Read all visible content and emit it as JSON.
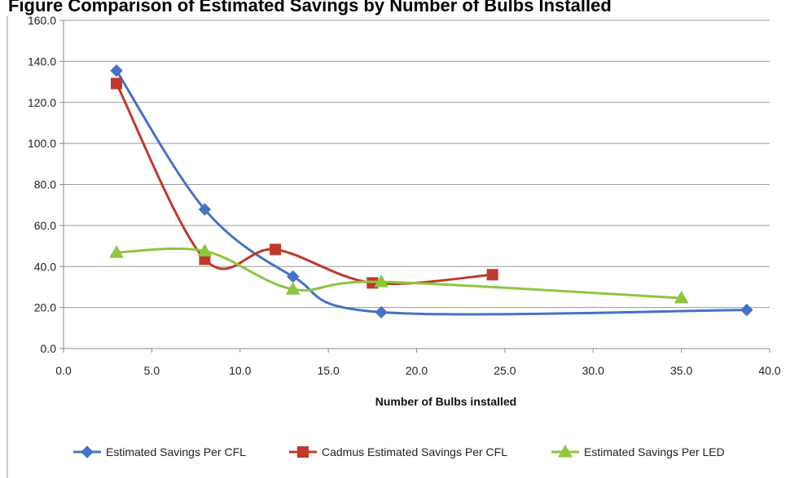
{
  "page": {
    "cut_title": "Figure  Comparison of Estimated Savings by Number of Bulbs Installed"
  },
  "chart_data": {
    "type": "line",
    "smooth": true,
    "title": "",
    "xlabel": "Number of Bulbs installed",
    "ylabel": "",
    "xlim": [
      0,
      40
    ],
    "ylim": [
      0,
      160
    ],
    "x_ticks": [
      "0.0",
      "5.0",
      "10.0",
      "15.0",
      "20.0",
      "25.0",
      "30.0",
      "35.0",
      "40.0"
    ],
    "y_ticks": [
      "0.0",
      "20.0",
      "40.0",
      "60.0",
      "80.0",
      "100.0",
      "120.0",
      "140.0",
      "160.0"
    ],
    "grid": "horizontal",
    "legend_position": "bottom",
    "series": [
      {
        "name": "Estimated Savings Per CFL",
        "color": "#4472C4",
        "marker": "diamond",
        "points": [
          [
            3.0,
            135.5
          ],
          [
            8.0,
            67.8
          ],
          [
            13.0,
            35.1
          ],
          [
            18.0,
            17.7
          ],
          [
            38.7,
            18.8
          ]
        ]
      },
      {
        "name": "Cadmus Estimated Savings Per CFL",
        "color": "#C0392B",
        "marker": "square",
        "points": [
          [
            3.0,
            129.2
          ],
          [
            8.0,
            43.5
          ],
          [
            12.0,
            48.3
          ],
          [
            17.5,
            32.0
          ],
          [
            24.3,
            36.0
          ]
        ]
      },
      {
        "name": "Estimated Savings Per LED",
        "color": "#8DC63F",
        "marker": "triangle",
        "points": [
          [
            3.0,
            46.8
          ],
          [
            8.0,
            47.5
          ],
          [
            13.0,
            28.9
          ],
          [
            18.0,
            32.5
          ],
          [
            35.0,
            24.6
          ]
        ]
      }
    ]
  }
}
